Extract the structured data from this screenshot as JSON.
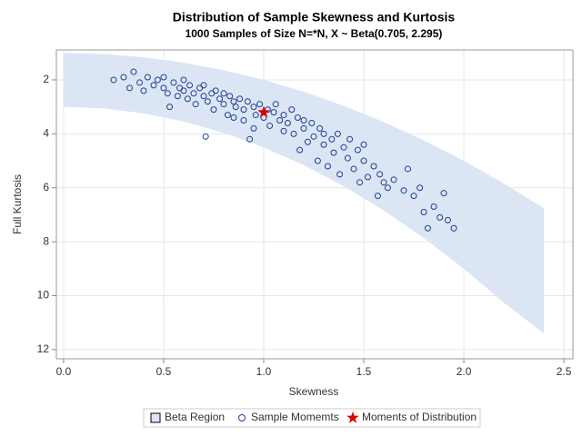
{
  "chart_data": {
    "type": "scatter",
    "title": "Distribution of Sample Skewness and Kurtosis",
    "subtitle": "1000 Samples of Size N=*N, X ~ Beta(0.705, 2.295)",
    "x_label": "Skewness",
    "y_label": "Full Kurtosis",
    "xlim": [
      -0.036,
      2.545
    ],
    "ylim": [
      0.89,
      12.34
    ],
    "y_reverse": true,
    "xticks": [
      {
        "value": 0,
        "label": "0.0"
      },
      {
        "value": 0.5,
        "label": "0.5"
      },
      {
        "value": 1,
        "label": "1.0"
      },
      {
        "value": 1.5,
        "label": "1.5"
      },
      {
        "value": 2,
        "label": "2.0"
      },
      {
        "value": 2.5,
        "label": "2.5"
      }
    ],
    "yticks": [
      2,
      4,
      6,
      8,
      10,
      12
    ],
    "grid": true,
    "band": {
      "name": "Beta Region",
      "color": "#dbe5f3",
      "x": [
        0,
        0.2,
        0.4,
        0.6,
        0.8,
        1.0,
        1.2,
        1.4,
        1.6,
        1.8,
        2.0,
        2.2,
        2.4
      ],
      "lower": [
        1,
        1.04,
        1.16,
        1.36,
        1.64,
        2,
        2.44,
        2.96,
        3.56,
        4.24,
        5,
        5.84,
        6.76
      ],
      "upper": [
        3,
        3.06,
        3.24,
        3.54,
        3.96,
        4.5,
        5.16,
        5.94,
        6.84,
        7.86,
        9,
        10.26,
        11.4
      ]
    },
    "series": [
      {
        "name": "Sample Momemts",
        "color": "#1f3f8f",
        "x": [
          0.25,
          0.3,
          0.33,
          0.35,
          0.38,
          0.4,
          0.42,
          0.45,
          0.47,
          0.5,
          0.5,
          0.52,
          0.53,
          0.55,
          0.57,
          0.58,
          0.6,
          0.6,
          0.62,
          0.63,
          0.65,
          0.66,
          0.68,
          0.7,
          0.7,
          0.71,
          0.72,
          0.74,
          0.75,
          0.76,
          0.78,
          0.8,
          0.8,
          0.82,
          0.83,
          0.85,
          0.86,
          0.88,
          0.9,
          0.9,
          0.92,
          0.93,
          0.95,
          0.96,
          0.98,
          1.0,
          1.02,
          1.03,
          1.05,
          1.06,
          1.08,
          1.1,
          1.1,
          1.12,
          1.14,
          1.15,
          1.17,
          1.18,
          1.2,
          1.2,
          1.22,
          1.24,
          1.25,
          1.27,
          1.28,
          1.3,
          1.3,
          1.32,
          1.34,
          1.35,
          1.37,
          1.38,
          1.4,
          1.42,
          1.43,
          1.45,
          1.47,
          1.48,
          1.5,
          1.5,
          1.52,
          1.55,
          1.57,
          1.58,
          1.6,
          1.62,
          1.65,
          1.7,
          1.72,
          1.75,
          1.78,
          1.8,
          1.82,
          1.85,
          1.88,
          1.9,
          1.92,
          1.95,
          0.95,
          0.85
        ],
        "values": [
          2.0,
          1.9,
          2.3,
          1.7,
          2.1,
          2.4,
          1.9,
          2.2,
          2.0,
          2.3,
          1.9,
          2.5,
          3.0,
          2.1,
          2.6,
          2.3,
          2.4,
          2.0,
          2.7,
          2.2,
          2.5,
          2.9,
          2.3,
          2.6,
          2.2,
          4.1,
          2.8,
          2.5,
          3.1,
          2.4,
          2.7,
          2.9,
          2.5,
          3.3,
          2.6,
          2.8,
          3.0,
          2.7,
          3.1,
          3.5,
          2.8,
          4.2,
          3.0,
          3.3,
          2.9,
          3.4,
          3.1,
          3.7,
          3.2,
          2.9,
          3.5,
          3.3,
          3.9,
          3.6,
          3.1,
          4.0,
          3.4,
          4.6,
          3.8,
          3.5,
          4.3,
          3.6,
          4.1,
          5.0,
          3.8,
          4.4,
          4.0,
          5.2,
          4.2,
          4.7,
          4.0,
          5.5,
          4.5,
          4.9,
          4.2,
          5.3,
          4.6,
          5.8,
          5.0,
          4.4,
          5.6,
          5.2,
          6.3,
          5.5,
          5.8,
          6.0,
          5.7,
          6.1,
          5.3,
          6.3,
          6.0,
          6.9,
          7.5,
          6.7,
          7.1,
          6.2,
          7.2,
          7.5,
          3.8,
          3.4
        ]
      },
      {
        "name": "Moments of Distribution",
        "color": "#e00000",
        "x": [
          1.0
        ],
        "values": [
          3.2
        ]
      }
    ]
  }
}
